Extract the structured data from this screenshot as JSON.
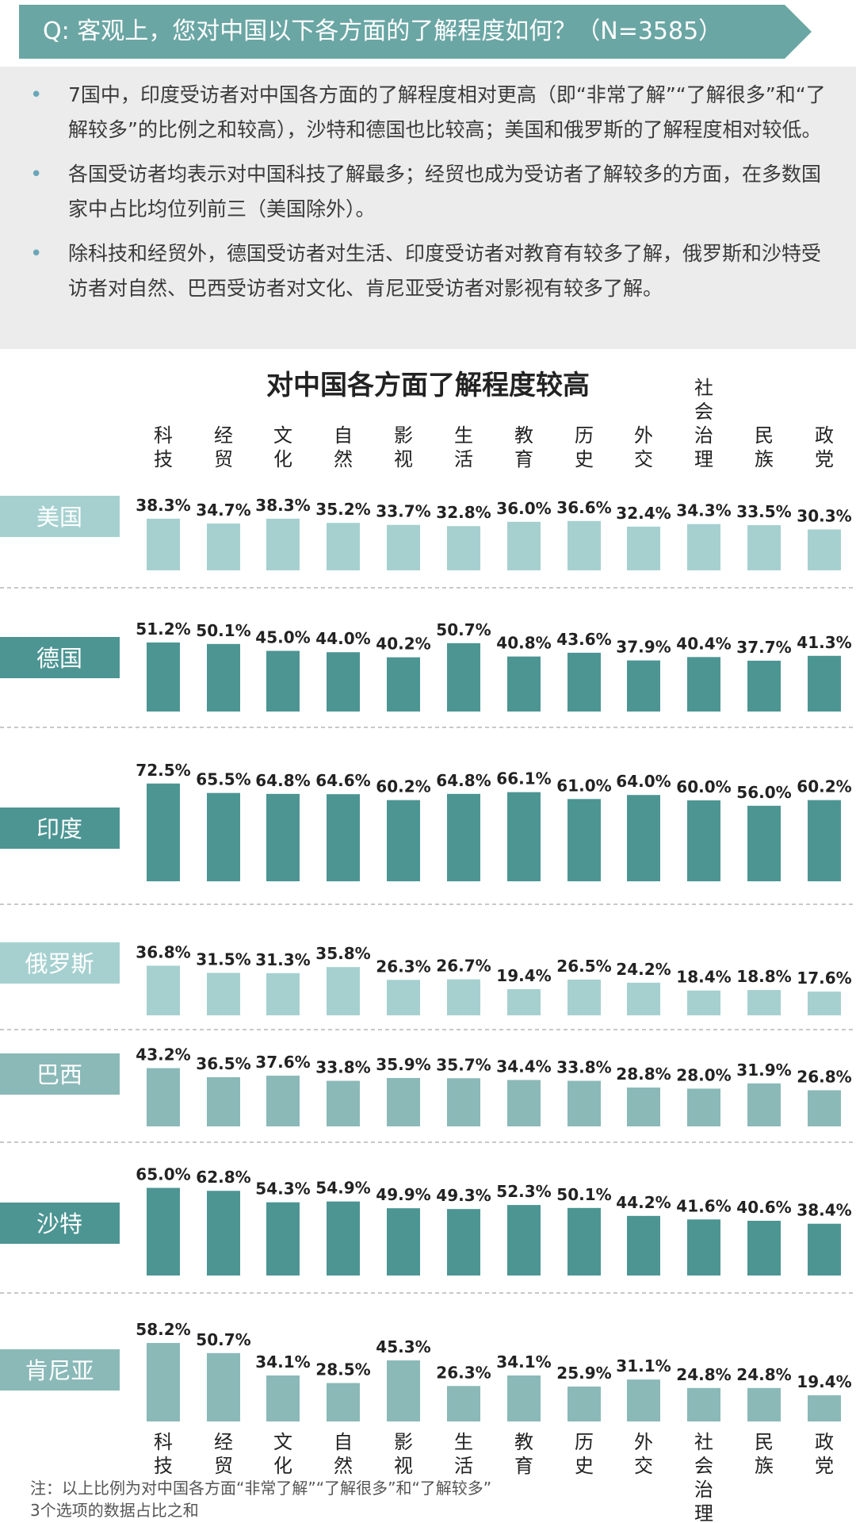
{
  "question": "Q: 客观上，您对中国以下各方面的了解程度如何？（N=3585）",
  "summary": [
    "7国中，印度受访者对中国各方面的了解程度相对更高（即“非常了解”“了解很多”和“了解较多”的比例之和较高），沙特和德国也比较高；美国和俄罗斯的了解程度相对较低。",
    "各国受访者均表示对中国科技了解最多；经贸也成为受访者了解较多的方面，在多数国家中占比均位列前三（美国除外）。",
    "除科技和经贸外，德国受访者对生活、印度受访者对教育有较多了解，俄罗斯和沙特受访者对自然、巴西受访者对文化、肯尼亚受访者对影视有较多了解。"
  ],
  "footnote": [
    "注：以上比例为对中国各方面“非常了解”“了解很多”和“了解较多”",
    "3个选项的数据占比之和"
  ],
  "colors": {
    "qbar": "#6aa6a4",
    "light": "#a6d0d0",
    "dark": "#4c9593",
    "mid": "#8ab9b8",
    "label_dark": "#4c9593",
    "label_light": "#a6d0d0"
  },
  "chart_data": {
    "type": "bar",
    "title": "对中国各方面了解程度较高",
    "categories": [
      "科技",
      "经贸",
      "文化",
      "自然",
      "影视",
      "生活",
      "教育",
      "历史",
      "外交",
      "社会治理",
      "民族",
      "政党"
    ],
    "series": [
      {
        "name": "美国",
        "shade": "light",
        "values": [
          38.3,
          34.7,
          38.3,
          35.2,
          33.7,
          32.8,
          36.0,
          36.6,
          32.4,
          34.3,
          33.5,
          30.3
        ]
      },
      {
        "name": "德国",
        "shade": "dark",
        "values": [
          51.2,
          50.1,
          45.0,
          44.0,
          40.2,
          50.7,
          40.8,
          43.6,
          37.9,
          40.4,
          37.7,
          41.3
        ]
      },
      {
        "name": "印度",
        "shade": "dark",
        "values": [
          72.5,
          65.5,
          64.8,
          64.6,
          60.2,
          64.8,
          66.1,
          61.0,
          64.0,
          60.0,
          56.0,
          60.2
        ]
      },
      {
        "name": "俄罗斯",
        "shade": "light",
        "values": [
          36.8,
          31.5,
          31.3,
          35.8,
          26.3,
          26.7,
          19.4,
          26.5,
          24.2,
          18.4,
          18.8,
          17.6
        ]
      },
      {
        "name": "巴西",
        "shade": "mid",
        "values": [
          43.2,
          36.5,
          37.6,
          33.8,
          35.9,
          35.7,
          34.4,
          33.8,
          28.8,
          28.0,
          31.9,
          26.8
        ]
      },
      {
        "name": "沙特",
        "shade": "dark",
        "values": [
          65.0,
          62.8,
          54.3,
          54.9,
          49.9,
          49.3,
          52.3,
          50.1,
          44.2,
          41.6,
          40.6,
          38.4
        ]
      },
      {
        "name": "肯尼亚",
        "shade": "mid",
        "values": [
          58.2,
          50.7,
          34.1,
          28.5,
          45.3,
          26.3,
          34.1,
          25.9,
          31.1,
          24.8,
          24.8,
          19.4
        ]
      }
    ],
    "value_suffix": "%"
  }
}
